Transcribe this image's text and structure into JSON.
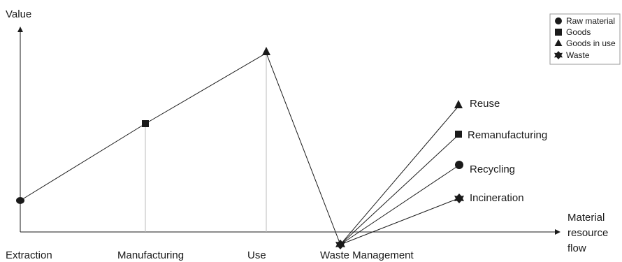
{
  "axes": {
    "y_label": "Value",
    "x_label_lines": [
      "Material",
      "resource",
      "flow"
    ]
  },
  "stages": [
    {
      "label": "Extraction",
      "marker": "circle"
    },
    {
      "label": "Manufacturing",
      "marker": "square"
    },
    {
      "label": "Use",
      "marker": "triangle"
    },
    {
      "label": "Waste Management",
      "marker": "star"
    }
  ],
  "outcomes": [
    {
      "label": "Reuse",
      "marker": "triangle"
    },
    {
      "label": "Remanufacturing",
      "marker": "square"
    },
    {
      "label": "Recycling",
      "marker": "circle"
    },
    {
      "label": "Incineration",
      "marker": "star"
    }
  ],
  "legend": {
    "items": [
      {
        "label": "Raw material",
        "marker": "circle"
      },
      {
        "label": "Goods",
        "marker": "square"
      },
      {
        "label": "Goods in use",
        "marker": "triangle"
      },
      {
        "label": "Waste",
        "marker": "star"
      }
    ]
  },
  "colors": {
    "line": "#1a1a1a",
    "guide": "#bbbbbb",
    "legend_border": "#999999"
  }
}
